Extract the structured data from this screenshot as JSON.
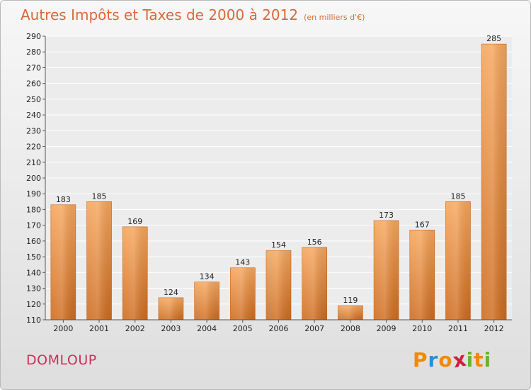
{
  "title": "Autres Impôts et Taxes de 2000 à 2012",
  "unit_label": "(en milliers d'€)",
  "commune": "DOMLOUP",
  "logo": {
    "text": "Proxiti",
    "letters": [
      "P",
      "r",
      "o",
      "x",
      "i",
      "t",
      "i"
    ],
    "colors": [
      "#f08a00",
      "#2a8fd6",
      "#f08a00",
      "#d21e3c",
      "#6ab42d",
      "#f08a00",
      "#6ab42d"
    ]
  },
  "colors": {
    "title": "#d76a3a",
    "commune": "#cc2f5a",
    "bar_top": "#f5a35a",
    "bar_bottom": "#cc6a1e"
  },
  "chart_data": {
    "type": "bar",
    "title": "Autres Impôts et Taxes de 2000 à 2012",
    "xlabel": "",
    "ylabel": "",
    "categories": [
      "2000",
      "2001",
      "2002",
      "2003",
      "2004",
      "2005",
      "2006",
      "2007",
      "2008",
      "2009",
      "2010",
      "2011",
      "2012"
    ],
    "values": [
      183,
      185,
      169,
      124,
      134,
      143,
      154,
      156,
      119,
      173,
      167,
      185,
      285
    ],
    "ylim": [
      110,
      290
    ],
    "yticks": [
      110,
      120,
      130,
      140,
      150,
      160,
      170,
      180,
      190,
      200,
      210,
      220,
      230,
      240,
      250,
      260,
      270,
      280,
      290
    ],
    "grid": true
  }
}
